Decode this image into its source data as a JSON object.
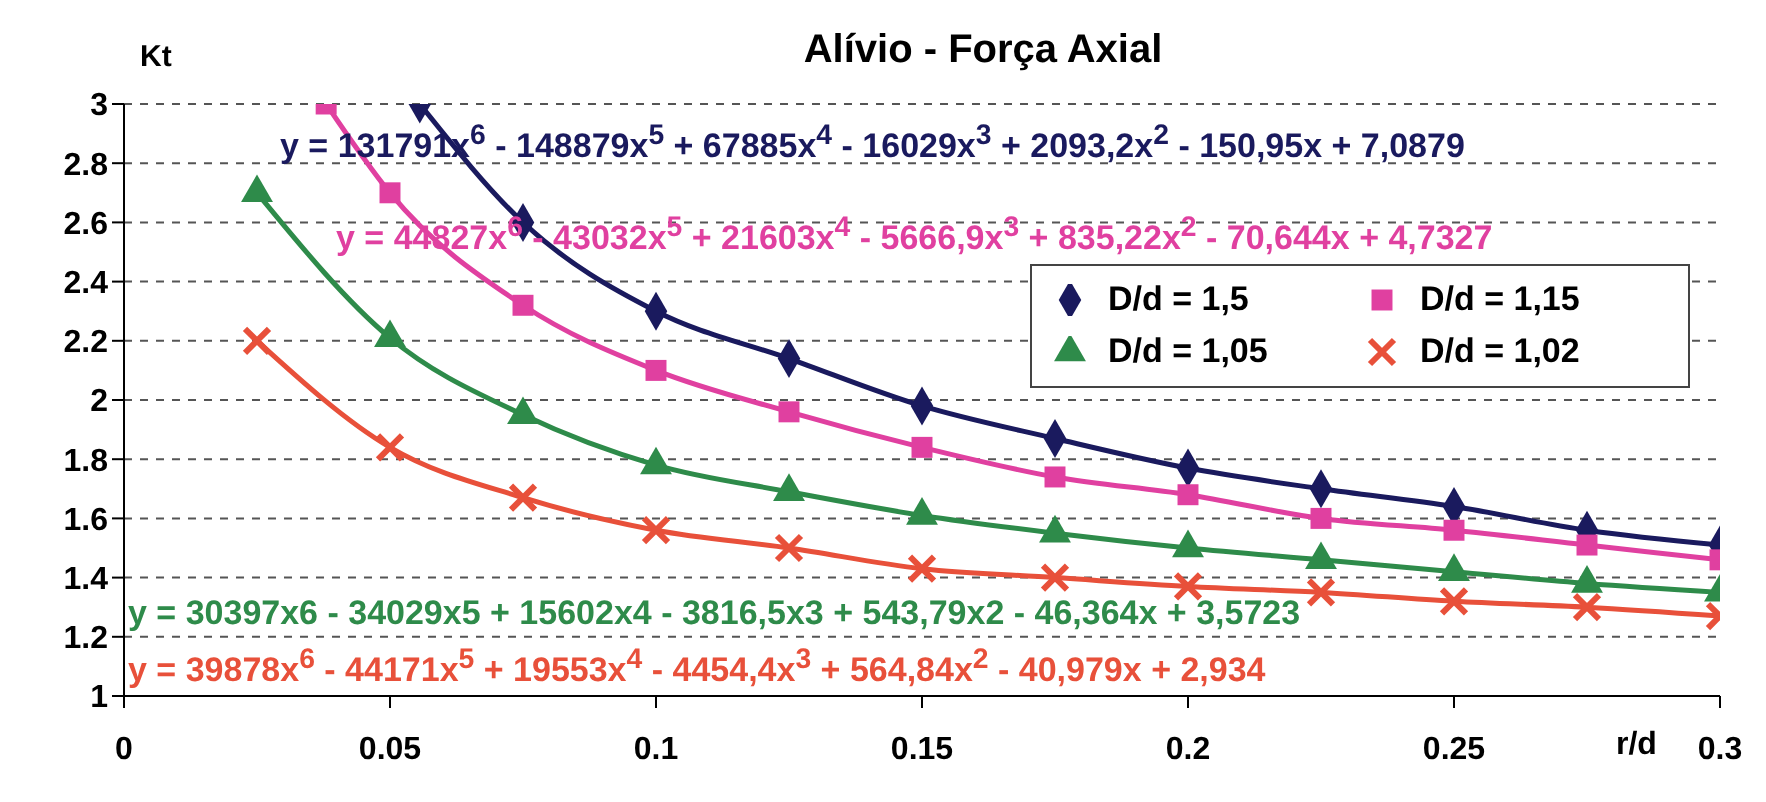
{
  "chart_data": {
    "type": "line",
    "title": "Alívio - Força Axial",
    "xlabel": "r/d",
    "ylabel": "Kt",
    "xlim": [
      0,
      0.3
    ],
    "xticks": [
      0,
      0.05,
      0.1,
      0.15,
      0.2,
      0.25,
      0.3
    ],
    "ylim": [
      1,
      3
    ],
    "yticks": [
      1,
      1.2,
      1.4,
      1.6,
      1.8,
      2,
      2.2,
      2.4,
      2.6,
      2.8,
      3
    ],
    "grid": "y",
    "legend": "top right",
    "line_style": "solid",
    "series": [
      {
        "name": "D/d = 1,5",
        "color": "#1a1a5e",
        "marker": "diamond",
        "x": [
          0.0556,
          0.075,
          0.1,
          0.125,
          0.15,
          0.175,
          0.2,
          0.225,
          0.25,
          0.275,
          0.3
        ],
        "values": [
          3.0,
          2.6,
          2.3,
          2.14,
          1.98,
          1.87,
          1.77,
          1.7,
          1.64,
          1.56,
          1.51
        ]
      },
      {
        "name": "D/d = 1,15",
        "color": "#e040a0",
        "marker": "square",
        "x": [
          0.038,
          0.05,
          0.075,
          0.1,
          0.125,
          0.15,
          0.175,
          0.2,
          0.225,
          0.25,
          0.275,
          0.3
        ],
        "values": [
          3.0,
          2.7,
          2.32,
          2.1,
          1.96,
          1.84,
          1.74,
          1.68,
          1.6,
          1.56,
          1.51,
          1.46
        ]
      },
      {
        "name": "D/d = 1,05",
        "color": "#2e8b4a",
        "marker": "triangle",
        "x": [
          0.025,
          0.05,
          0.075,
          0.1,
          0.125,
          0.15,
          0.175,
          0.2,
          0.225,
          0.25,
          0.275,
          0.3
        ],
        "values": [
          2.7,
          2.21,
          1.95,
          1.78,
          1.69,
          1.61,
          1.55,
          1.5,
          1.46,
          1.42,
          1.38,
          1.35
        ]
      },
      {
        "name": "D/d = 1,02",
        "color": "#e8503a",
        "marker": "cross",
        "x": [
          0.025,
          0.05,
          0.075,
          0.1,
          0.125,
          0.15,
          0.175,
          0.2,
          0.225,
          0.25,
          0.275,
          0.3
        ],
        "values": [
          2.2,
          1.84,
          1.67,
          1.56,
          1.5,
          1.43,
          1.4,
          1.37,
          1.35,
          1.32,
          1.3,
          1.27
        ]
      }
    ],
    "annotations": [
      "y = 131791x$^{6}$ - 148879x$^{5}$ + 67885x$^{4}$ - 16029x$^{3}$ + 2093,2x$^{2}$ - 150,95x + 7,0879",
      "y = 44827x$^{6}$ - 43032x$^{5}$ + 21603x$^{4}$ - 5666,9x$^{3}$ + 835,22x$^{2}$ - 70,644x + 4,7327",
      "y = 30397x6 - 34029x5 + 15602x4 - 3816,5x3 + 543,79x2 - 46,364x + 3,5723",
      "y = 39878x$^{6}$ - 44171x$^{5}$ + 19553x$^{4}$ - 4454,4x$^{3}$ + 564,84x$^{2}$ - 40,979x + 2,934"
    ]
  }
}
